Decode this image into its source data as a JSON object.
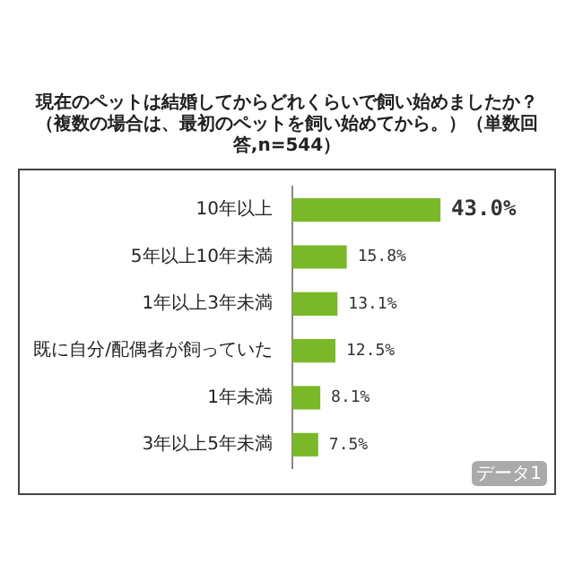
{
  "chart_data": {
    "type": "bar",
    "orientation": "horizontal",
    "title": "現在のペットは結婚してからどれくらいで飼い始めましたか？",
    "subtitle": "（複数の場合は、最初のペットを飼い始めてから。）（単数回答,n=544）",
    "categories": [
      "10年以上",
      "5年以上10年未満",
      "1年以上3年未満",
      "既に自分/配偶者が飼っていた",
      "1年未満",
      "3年以上5年未満"
    ],
    "values": [
      43.0,
      15.8,
      13.1,
      12.5,
      8.1,
      7.5
    ],
    "value_labels": [
      "43.0%",
      "15.8%",
      "13.1%",
      "12.5%",
      "8.1%",
      "7.5%"
    ],
    "color": "#7ab829",
    "tick_labels": "y",
    "legend": false,
    "annotations": [
      "データ1"
    ]
  }
}
